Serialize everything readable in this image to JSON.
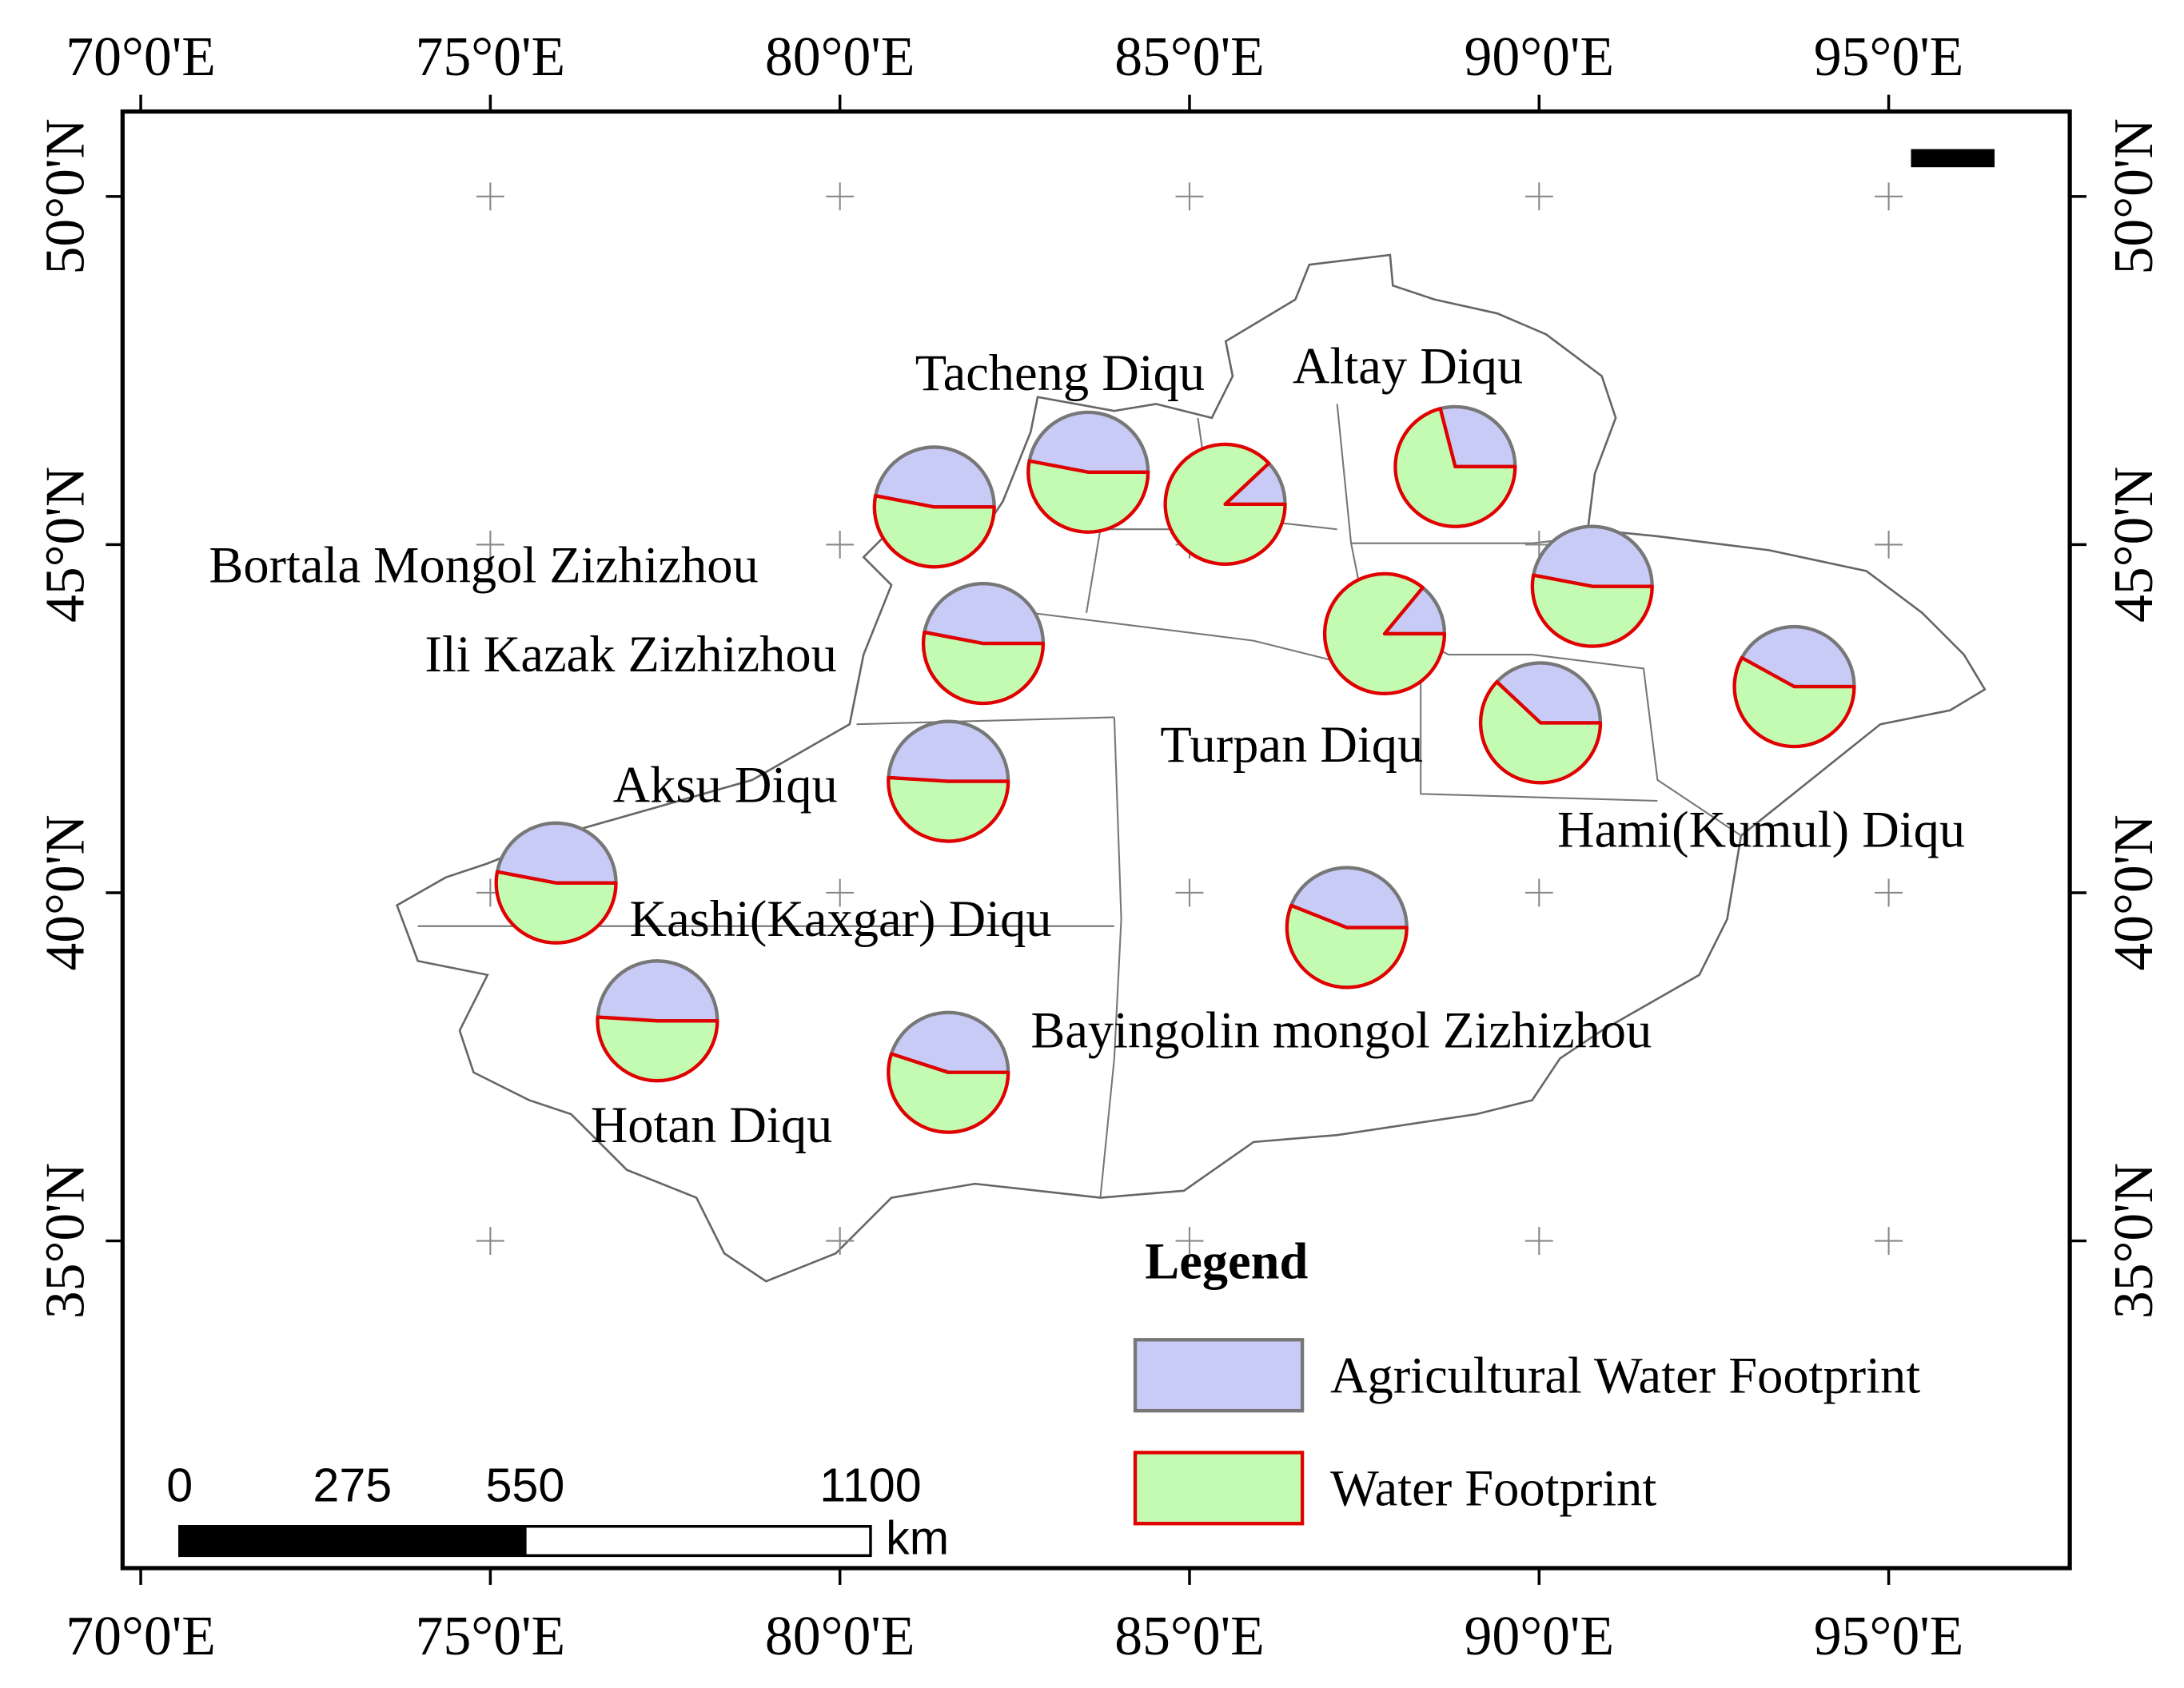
{
  "map": {
    "legend_title": "Legend",
    "series": [
      {
        "name": "Agricultural Water Footprint",
        "color": "#c8cbf6",
        "stroke": "#777777"
      },
      {
        "name": "Water Footprint",
        "color": "#c3fbb3",
        "stroke": "#e00000"
      }
    ],
    "xlim": [
      69.74,
      97.59
    ],
    "ylim": [
      30.3,
      51.22
    ],
    "xticks": [
      {
        "value": 70,
        "label": "70°0'E"
      },
      {
        "value": 75,
        "label": "75°0'E"
      },
      {
        "value": 80,
        "label": "80°0'E"
      },
      {
        "value": 85,
        "label": "85°0'E"
      },
      {
        "value": 90,
        "label": "90°0'E"
      },
      {
        "value": 95,
        "label": "95°0'E"
      }
    ],
    "yticks": [
      {
        "value": 35,
        "label": "35°0'N"
      },
      {
        "value": 40,
        "label": "40°0'N"
      },
      {
        "value": 45,
        "label": "45°0'N"
      },
      {
        "value": 50,
        "label": "50°0'N"
      }
    ],
    "pies": [
      {
        "label": "Bortala Mongol Zizhizhou",
        "lon": 81.35,
        "lat": 45.54,
        "values": [
          47,
          53
        ]
      },
      {
        "label": "Tacheng Diqu",
        "lon": 83.55,
        "lat": 46.04,
        "values": [
          47,
          53
        ]
      },
      {
        "lon": 85.51,
        "lat": 45.58,
        "values": [
          12,
          88
        ]
      },
      {
        "label": "Altay Diqu",
        "lon": 88.8,
        "lat": 46.12,
        "values": [
          29,
          71
        ]
      },
      {
        "label": "Ili Kazak Zizhizhou",
        "lon": 82.05,
        "lat": 43.58,
        "values": [
          47,
          53
        ]
      },
      {
        "lon": 87.79,
        "lat": 43.72,
        "values": [
          14,
          86
        ]
      },
      {
        "lon": 90.76,
        "lat": 44.4,
        "values": [
          47,
          53
        ]
      },
      {
        "label": "Hami(Kumul) Diqu",
        "lon": 93.65,
        "lat": 42.96,
        "values": [
          42,
          58
        ]
      },
      {
        "label": "Turpan Diqu",
        "lon": 90.02,
        "lat": 42.44,
        "values": [
          38,
          62
        ]
      },
      {
        "label": "Aksu Diqu",
        "lon": 81.55,
        "lat": 41.6,
        "values": [
          49,
          51
        ]
      },
      {
        "label": "Kashi(Kaxgar) Diqu",
        "lon": 75.94,
        "lat": 40.14,
        "values": [
          47,
          53
        ]
      },
      {
        "label": "Bayingolin mongol Zizhizhou",
        "lon": 87.25,
        "lat": 39.5,
        "values": [
          44,
          56
        ]
      },
      {
        "label": "Hotan Diqu",
        "lon": 77.39,
        "lat": 38.16,
        "values": [
          49,
          51
        ]
      },
      {
        "lon": 81.55,
        "lat": 37.42,
        "values": [
          45,
          55
        ]
      }
    ],
    "scale_bar": {
      "ticks": [
        0,
        275,
        550,
        1100
      ],
      "unit": "km"
    }
  }
}
